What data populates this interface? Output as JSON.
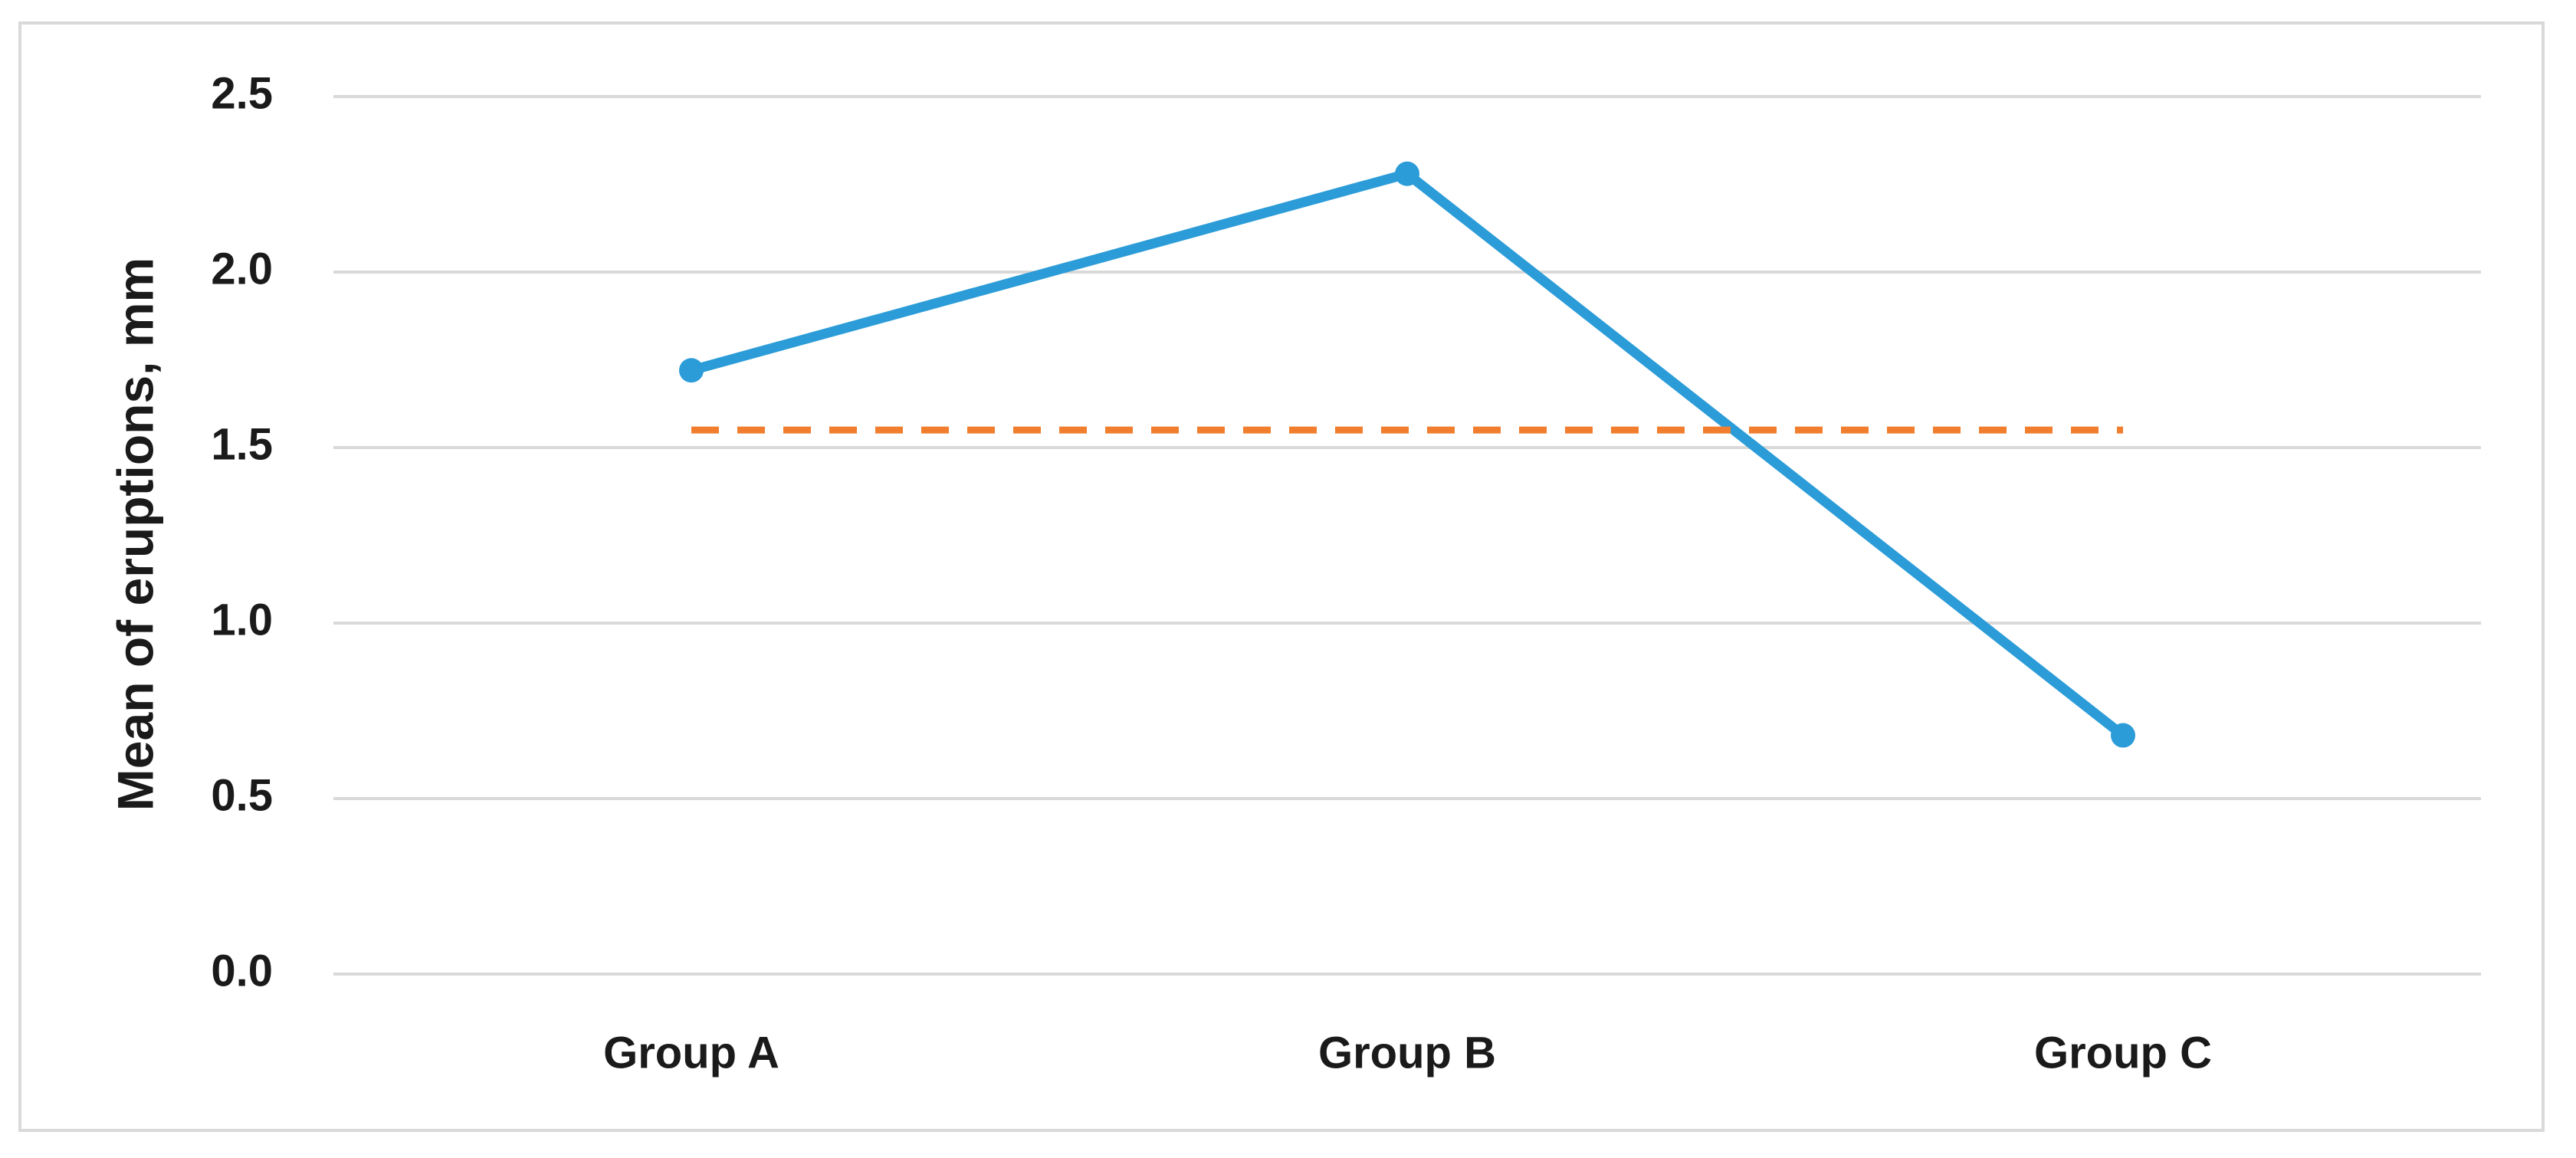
{
  "chart_data": {
    "type": "line",
    "y_label": "Mean of eruptions, mm",
    "categories": [
      "Group A",
      "Group B",
      "Group C"
    ],
    "series": [
      {
        "color": "#2b9cd8",
        "values": [
          1.72,
          2.28,
          0.68
        ],
        "markers": true,
        "dashed": false
      },
      {
        "color": "#f07e2e",
        "values": [
          1.55,
          1.55,
          1.55
        ],
        "markers": false,
        "dashed": true
      }
    ],
    "ylim": [
      0,
      2.5
    ],
    "yticks": [
      {
        "value": 0,
        "label": "0.0"
      },
      0.5,
      {
        "value": 1,
        "label": "1.0"
      },
      1.5,
      {
        "value": 2,
        "label": "2.0"
      },
      2.5
    ],
    "grid": true
  }
}
